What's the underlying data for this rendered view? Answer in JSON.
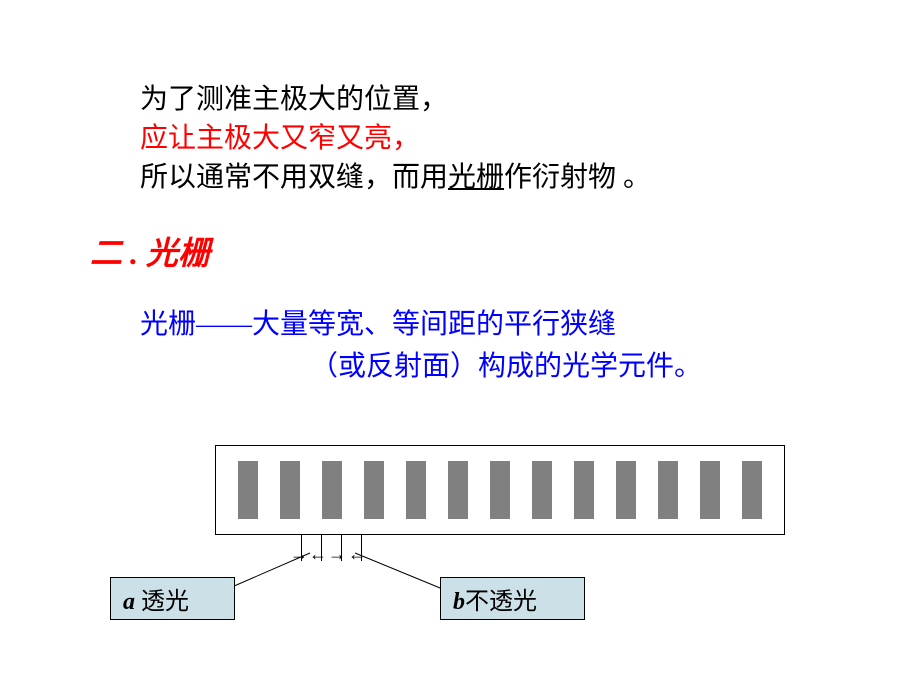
{
  "intro": {
    "line1": "为了测准主极大的位置，",
    "line2": "应让主极大又窄又亮，",
    "line3_a": "所以通常不用双缝，而用",
    "line3_b": "光栅",
    "line3_c": "作衍射物 。"
  },
  "section_title": "二 . 光栅",
  "definition": {
    "line1": "光栅——大量等宽、等间距的平行狭缝",
    "line2": "（或反射面）构成的光学元件。"
  },
  "diagram": {
    "slit_count": 13,
    "slit_color": "#808080",
    "box_border": "#000000",
    "box_bg": "#ffffff",
    "label_bg": "#cce0e8",
    "label_a_symbol": "a",
    "label_a_text": " 透光",
    "label_b_symbol": "b",
    "label_b_text": "不透光"
  },
  "colors": {
    "black": "#000000",
    "red": "#ff0000",
    "blue": "#0000ff"
  }
}
